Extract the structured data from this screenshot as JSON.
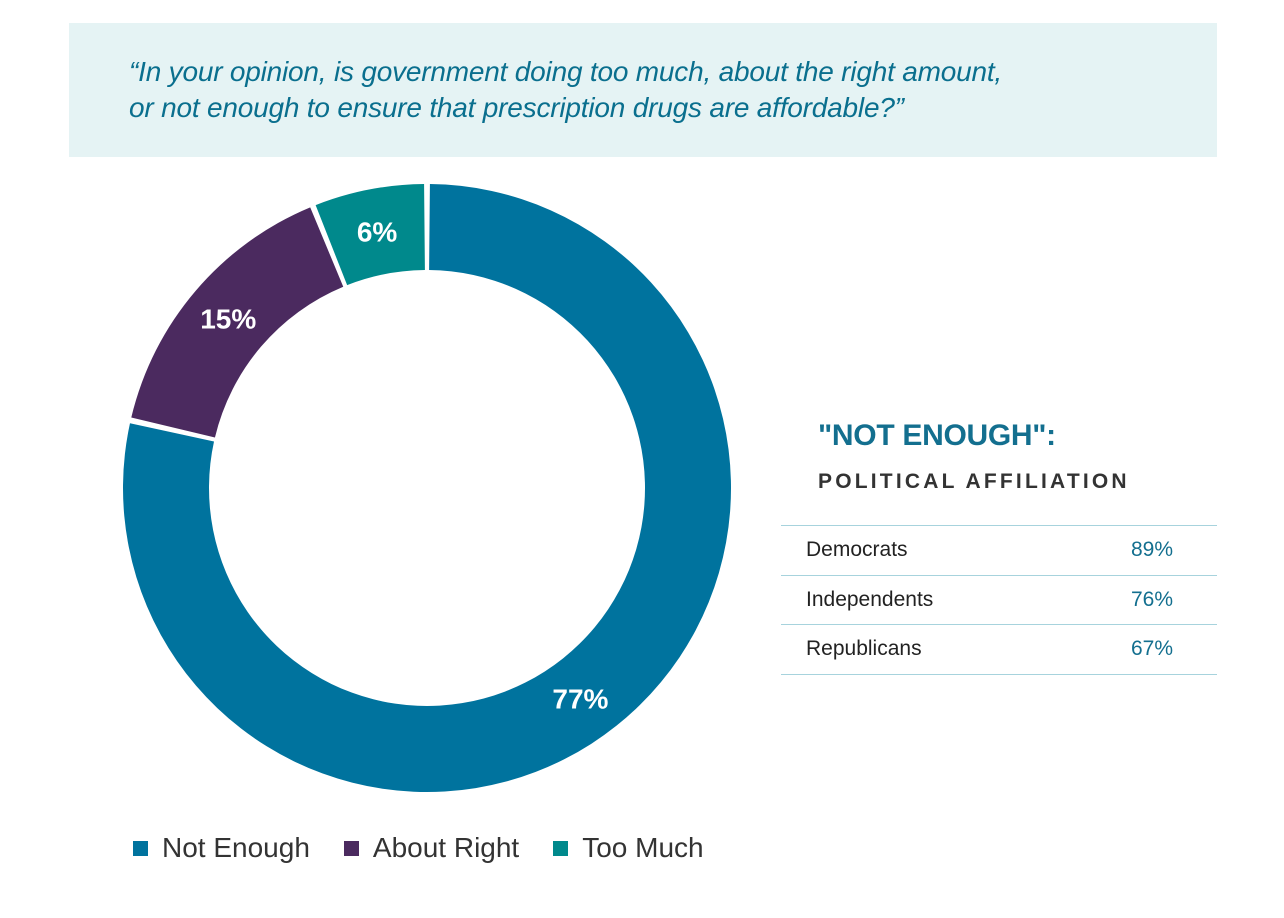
{
  "question": {
    "line1": "“In your opinion, is government doing too much, about the right amount,",
    "line2": "or not enough to ensure that prescription drugs are affordable?”"
  },
  "chart_data": {
    "type": "pie",
    "donut": true,
    "categories": [
      "Not Enough",
      "About Right",
      "Too Much"
    ],
    "values": [
      77,
      15,
      6
    ],
    "labels": [
      "77%",
      "15%",
      "6%"
    ],
    "colors": [
      "#00739e",
      "#4b2a5f",
      "#00898c"
    ],
    "title": "",
    "legend_position": "bottom-left"
  },
  "affiliation": {
    "title": "\"NOT ENOUGH\":",
    "subtitle": "POLITICAL AFFILIATION",
    "rows": [
      {
        "group": "Democrats",
        "value": "89%"
      },
      {
        "group": "Independents",
        "value": "76%"
      },
      {
        "group": "Republicans",
        "value": "67%"
      }
    ]
  },
  "legend": [
    {
      "label": "Not Enough",
      "color": "#00739e"
    },
    {
      "label": "About Right",
      "color": "#4b2a5f"
    },
    {
      "label": "Too Much",
      "color": "#00898c"
    }
  ]
}
